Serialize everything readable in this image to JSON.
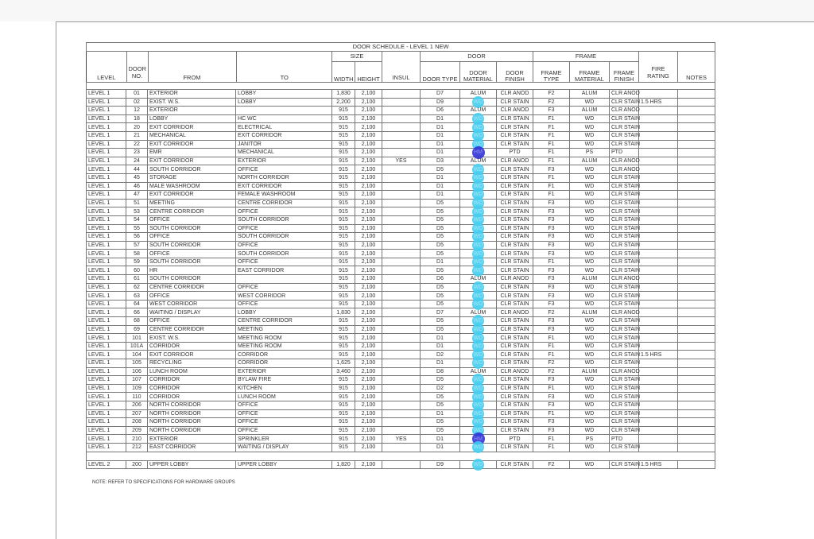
{
  "schedule": {
    "title": "DOOR SCHEDULE - LEVEL 1 NEW",
    "groups": {
      "size": "SIZE",
      "door": "DOOR",
      "frame": "FRAME"
    },
    "headers": [
      "LEVEL",
      "DOOR NO.",
      "FROM",
      "TO",
      "WIDTH",
      "HEIGHT",
      "INSUL",
      "DOOR TYPE",
      "DOOR MATERIAL",
      "DOOR FINISH",
      "FRAME TYPE",
      "FRAME MATERIAL",
      "FRAME FINISH",
      "FIRE RATING",
      "NOTES"
    ],
    "highlight_colors": {
      "WD": "#46cdf0",
      "HM": "#3232d7"
    },
    "rows": [
      [
        "LEVEL 1",
        "01",
        "EXTERIOR",
        "LOBBY",
        "1,830",
        "2,100",
        "",
        "D7",
        "ALUM",
        "CLR ANOD",
        "F2",
        "ALUM",
        "CLR ANOD",
        "",
        ""
      ],
      [
        "LEVEL 1",
        "02",
        "EXIST.  W.S.",
        "LOBBY",
        "2,200",
        "2,100",
        "",
        "D9",
        "WD",
        "CLR STAIN",
        "F2",
        "WD",
        "CLR STAIN",
        "1.5 HRS",
        ""
      ],
      [
        "LEVEL 1",
        "12",
        "EXTERIOR",
        "",
        "915",
        "2,100",
        "",
        "D6",
        "ALUM",
        "CLR ANOD",
        "F3",
        "ALUM",
        "CLR ANOD",
        "",
        ""
      ],
      [
        "LEVEL 1",
        "18",
        "LOBBY",
        "HC WC",
        "915",
        "2,100",
        "",
        "D1",
        "WD",
        "CLR STAIN",
        "F1",
        "WD",
        "CLR STAIN",
        "",
        ""
      ],
      [
        "LEVEL 1",
        "20",
        "EXIT CORRIDOR",
        "ELECTRICAL",
        "915",
        "2,100",
        "",
        "D1",
        "WD",
        "CLR STAIN",
        "F1",
        "WD",
        "CLR STAIN",
        "",
        ""
      ],
      [
        "LEVEL 1",
        "21",
        "MECHANICAL",
        "EXIT CORRIDOR",
        "915",
        "2,100",
        "",
        "D1",
        "WD",
        "CLR STAIN",
        "F1",
        "WD",
        "CLR STAIN",
        "",
        ""
      ],
      [
        "LEVEL 1",
        "22",
        "EXIT CORRIDOR",
        "JANITOR",
        "915",
        "2,100",
        "",
        "D1",
        "WD",
        "CLR STAIN",
        "F1",
        "WD",
        "CLR STAIN",
        "",
        ""
      ],
      [
        "LEVEL 1",
        "23",
        "EMR",
        "MECHANICAL",
        "915",
        "2,100",
        "",
        "D1",
        "HM",
        "PTD",
        "F1",
        "PS",
        "PTD",
        "",
        ""
      ],
      [
        "LEVEL 1",
        "24",
        "EXIT CORRIDOR",
        "EXTERIOR",
        "915",
        "2,100",
        "YES",
        "D3",
        "ALUM",
        "CLR ANOD",
        "F1",
        "ALUM",
        "CLR ANOD",
        "",
        ""
      ],
      [
        "LEVEL 1",
        "44",
        "SOUTH CORRIDOR",
        "OFFICE",
        "915",
        "2,100",
        "",
        "D5",
        "WD",
        "CLR STAIN",
        "F3",
        "WD",
        "CLR ANOD",
        "",
        ""
      ],
      [
        "LEVEL 1",
        "45",
        "STORAGE",
        "NORTH CORRIDOR",
        "915",
        "2,100",
        "",
        "D1",
        "WD",
        "CLR STAIN",
        "F1",
        "WD",
        "CLR STAIN",
        "",
        ""
      ],
      [
        "LEVEL 1",
        "46",
        "MALE WASHROOM",
        "EXIT CORRIDOR",
        "915",
        "2,100",
        "",
        "D1",
        "WD",
        "CLR STAIN",
        "F1",
        "WD",
        "CLR STAIN",
        "",
        ""
      ],
      [
        "LEVEL 1",
        "47",
        "EXIT CORRIDOR",
        "FEMALE WASHROOM",
        "915",
        "2,100",
        "",
        "D1",
        "WD",
        "CLR STAIN",
        "F1",
        "WD",
        "CLR STAIN",
        "",
        ""
      ],
      [
        "LEVEL 1",
        "51",
        "MEETING",
        "CENTRE CORRIDOR",
        "915",
        "2,100",
        "",
        "D5",
        "WD",
        "CLR STAIN",
        "F3",
        "WD",
        "CLR STAIN",
        "",
        ""
      ],
      [
        "LEVEL 1",
        "53",
        "CENTRE CORRIDOR",
        "OFFICE",
        "915",
        "2,100",
        "",
        "D5",
        "WD",
        "CLR STAIN",
        "F3",
        "WD",
        "CLR STAIN",
        "",
        ""
      ],
      [
        "LEVEL 1",
        "54",
        "OFFICE",
        "SOUTH CORRIDOR",
        "915",
        "2,100",
        "",
        "D5",
        "WD",
        "CLR STAIN",
        "F3",
        "WD",
        "CLR STAIN",
        "",
        ""
      ],
      [
        "LEVEL 1",
        "55",
        "SOUTH CORRIDOR",
        "OFFICE",
        "915",
        "2,100",
        "",
        "D5",
        "WD",
        "CLR STAIN",
        "F3",
        "WD",
        "CLR STAIN",
        "",
        ""
      ],
      [
        "LEVEL 1",
        "56",
        "OFFICE",
        "SOUTH CORRIDOR",
        "915",
        "2,100",
        "",
        "D5",
        "WD",
        "CLR STAIN",
        "F3",
        "WD",
        "CLR STAIN",
        "",
        ""
      ],
      [
        "LEVEL 1",
        "57",
        "SOUTH CORRIDOR",
        "OFFICE",
        "915",
        "2,100",
        "",
        "D5",
        "WD",
        "CLR STAIN",
        "F3",
        "WD",
        "CLR STAIN",
        "",
        ""
      ],
      [
        "LEVEL 1",
        "58",
        "OFFICE",
        "SOUTH CORRIDOR",
        "915",
        "2,100",
        "",
        "D5",
        "WD",
        "CLR STAIN",
        "F3",
        "WD",
        "CLR STAIN",
        "",
        ""
      ],
      [
        "LEVEL 1",
        "59",
        "SOUTH CORRIDOR",
        "OFFICE",
        "915",
        "2,100",
        "",
        "D1",
        "WD",
        "CLR STAIN",
        "F1",
        "WD",
        "CLR STAIN",
        "",
        ""
      ],
      [
        "LEVEL 1",
        "60",
        "HR",
        "EAST CORRIDOR",
        "915",
        "2,100",
        "",
        "D5",
        "WD",
        "CLR STAIN",
        "F3",
        "WD",
        "CLR STAIN",
        "",
        ""
      ],
      [
        "LEVEL 1",
        "61",
        "SOUTH CORRIDOR",
        "",
        "915",
        "2,100",
        "",
        "D6",
        "ALUM",
        "CLR ANOD",
        "F3",
        "ALUM",
        "CLR ANOD",
        "",
        ""
      ],
      [
        "LEVEL 1",
        "62",
        "CENTRE CORRIDOR",
        "OFFICE",
        "915",
        "2,100",
        "",
        "D5",
        "WD",
        "CLR STAIN",
        "F3",
        "WD",
        "CLR STAIN",
        "",
        ""
      ],
      [
        "LEVEL 1",
        "63",
        "OFFICE",
        "WEST CORRIDOR",
        "915",
        "2,100",
        "",
        "D5",
        "WD",
        "CLR STAIN",
        "F3",
        "WD",
        "CLR STAIN",
        "",
        ""
      ],
      [
        "LEVEL 1",
        "64",
        "WEST CORRIDOR",
        "OFFICE",
        "915",
        "2,100",
        "",
        "D5",
        "WD",
        "CLR STAIN",
        "F3",
        "WD",
        "CLR STAIN",
        "",
        ""
      ],
      [
        "LEVEL 1",
        "66",
        "WAITING / DISPLAY",
        "LOBBY",
        "1,830",
        "2,100",
        "",
        "D7",
        "ALUM",
        "CLR ANOD",
        "F2",
        "ALUM",
        "CLR ANOD",
        "",
        ""
      ],
      [
        "LEVEL 1",
        "68",
        "OFFICE",
        "CENTRE CORRIDOR",
        "915",
        "2,100",
        "",
        "D5",
        "WD",
        "CLR STAIN",
        "F3",
        "WD",
        "CLR STAIN",
        "",
        ""
      ],
      [
        "LEVEL 1",
        "69",
        "CENTRE CORRIDOR",
        "MEETING",
        "915",
        "2,100",
        "",
        "D5",
        "WD",
        "CLR STAIN",
        "F3",
        "WD",
        "CLR STAIN",
        "",
        ""
      ],
      [
        "LEVEL 1",
        "101",
        "EXIST.  W.S.",
        "MEETING ROOM",
        "915",
        "2,100",
        "",
        "D1",
        "WD",
        "CLR STAIN",
        "F1",
        "WD",
        "CLR STAIN",
        "",
        ""
      ],
      [
        "LEVEL 1",
        "101A",
        "CORRIDOR",
        "MEETING ROOM",
        "915",
        "2,100",
        "",
        "D1",
        "WD",
        "CLR STAIN",
        "F1",
        "WD",
        "CLR STAIN",
        "",
        ""
      ],
      [
        "LEVEL 1",
        "104",
        "EXIT CORRIDOR",
        "CORRIDOR",
        "915",
        "2,100",
        "",
        "D2",
        "WD",
        "CLR STAIN",
        "F1",
        "WD",
        "CLR STAIN",
        "1.5 HRS",
        ""
      ],
      [
        "LEVEL 1",
        "105",
        "RECYCLING",
        "CORRIDOR",
        "1,625",
        "2,100",
        "",
        "D1",
        "WD",
        "CLR STAIN",
        "F2",
        "WD",
        "CLR STAIN",
        "",
        ""
      ],
      [
        "LEVEL 1",
        "106",
        "LUNCH ROOM",
        "EXTERIOR",
        "3,460",
        "2,100",
        "",
        "D8",
        "ALUM",
        "CLR ANOD",
        "F2",
        "ALUM",
        "CLR ANOD",
        "",
        ""
      ],
      [
        "LEVEL 1",
        "107",
        "CORRIDOR",
        "BYLAW FIRE",
        "915",
        "2,100",
        "",
        "D5",
        "WD",
        "CLR STAIN",
        "F3",
        "WD",
        "CLR STAIN",
        "",
        ""
      ],
      [
        "LEVEL 1",
        "109",
        "CORRIDOR",
        "KITCHEN",
        "915",
        "2,100",
        "",
        "D2",
        "WD",
        "CLR STAIN",
        "F1",
        "WD",
        "CLR STAIN",
        "",
        ""
      ],
      [
        "LEVEL 1",
        "110",
        "CORRIDOR",
        "LUNCH ROOM",
        "915",
        "2,100",
        "",
        "D5",
        "WD",
        "CLR STAIN",
        "F3",
        "WD",
        "CLR STAIN",
        "",
        ""
      ],
      [
        "LEVEL 1",
        "206",
        "NORTH CORRIDOR",
        "OFFICE",
        "915",
        "2,100",
        "",
        "D5",
        "WD",
        "CLR STAIN",
        "F3",
        "WD",
        "CLR STAIN",
        "",
        ""
      ],
      [
        "LEVEL 1",
        "207",
        "NORTH CORRIDOR",
        "OFFICE",
        "915",
        "2,100",
        "",
        "D1",
        "WD",
        "CLR STAIN",
        "F1",
        "WD",
        "CLR STAIN",
        "",
        ""
      ],
      [
        "LEVEL 1",
        "208",
        "NORTH CORRIDOR",
        "OFFICE",
        "915",
        "2,100",
        "",
        "D5",
        "WD",
        "CLR STAIN",
        "F3",
        "WD",
        "CLR STAIN",
        "",
        ""
      ],
      [
        "LEVEL 1",
        "209",
        "NORTH CORRIDOR",
        "OFFICE",
        "915",
        "2,100",
        "",
        "D5",
        "WD",
        "CLR STAIN",
        "F3",
        "WD",
        "CLR STAIN",
        "",
        ""
      ],
      [
        "LEVEL 1",
        "210",
        "EXTERIOR",
        "SPRINKLER",
        "915",
        "2,100",
        "YES",
        "D1",
        "HM",
        "PTD",
        "F1",
        "PS",
        "PTD",
        "",
        ""
      ],
      [
        "LEVEL 1",
        "212",
        "EAST CORRIDOR",
        "WAITING / DISPLAY",
        "915",
        "2,100",
        "",
        "D1",
        "WD",
        "CLR STAIN",
        "F1",
        "WD",
        "CLR STAIN",
        "",
        ""
      ]
    ],
    "level2_rows": [
      [
        "LEVEL 2",
        "200",
        "UPPER LOBBY",
        "UPPER LOBBY",
        "1,820",
        "2,100",
        "",
        "D9",
        "WD",
        "CLR STAIN",
        "F2",
        "WD",
        "CLR STAIN",
        "1.5 HRS",
        ""
      ]
    ]
  },
  "note": "NOTE: REFER TO SPECIFICATIONS FOR HARDWARE GROUPS"
}
